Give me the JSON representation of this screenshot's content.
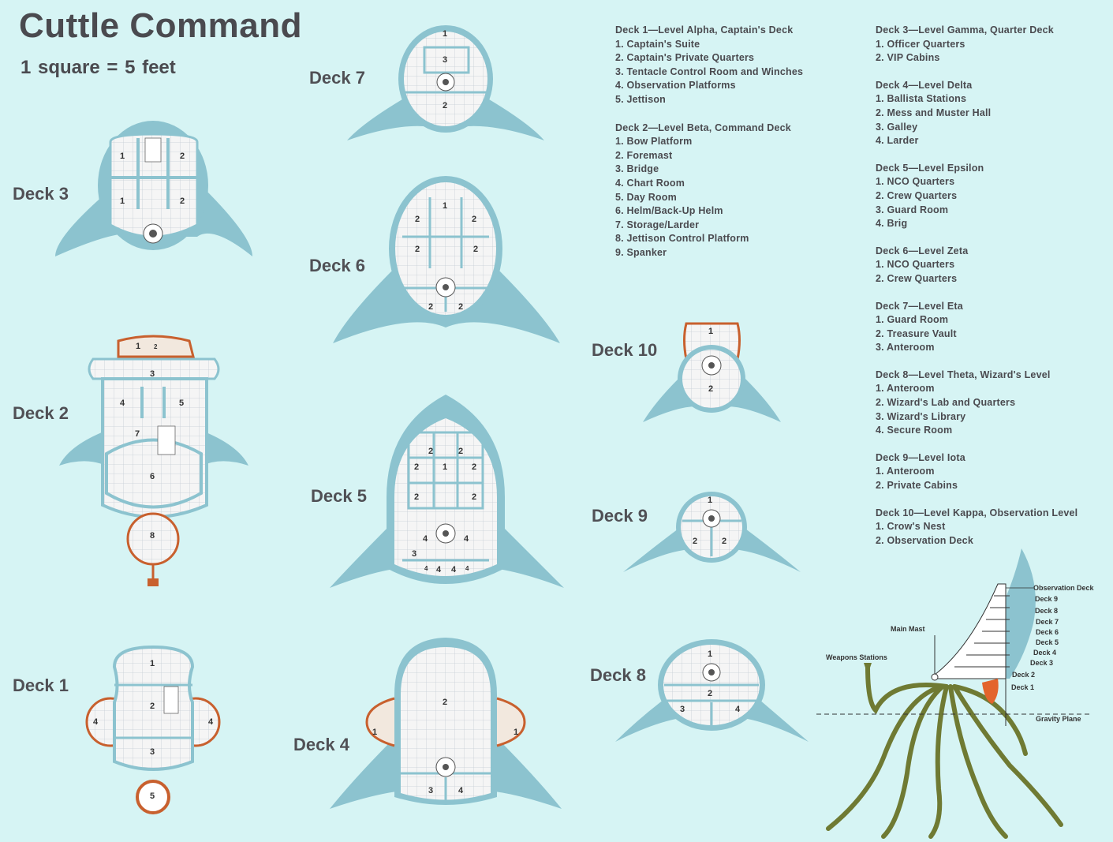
{
  "title": "Cuttle Command",
  "scale": "1 square  =  5 feet",
  "deck_labels": {
    "deck3": "Deck 3",
    "deck2": "Deck 2",
    "deck1": "Deck 1",
    "deck7": "Deck 7",
    "deck6": "Deck 6",
    "deck5": "Deck 5",
    "deck4": "Deck 4",
    "deck10": "Deck 10",
    "deck9": "Deck 9",
    "deck8": "Deck 8"
  },
  "legend_left": [
    {
      "heading": "Deck 1—Level Alpha, Captain's Deck",
      "items": [
        "1. Captain's Suite",
        "2. Captain's Private Quarters",
        "3. Tentacle Control Room and Winches",
        "4. Observation Platforms",
        "5. Jettison"
      ]
    },
    {
      "heading": "Deck 2—Level Beta, Command Deck",
      "items": [
        "1. Bow Platform",
        "2. Foremast",
        "3. Bridge",
        "4. Chart Room",
        "5. Day Room",
        "6. Helm/Back-Up Helm",
        "7. Storage/Larder",
        "8. Jettison Control Platform",
        "9. Spanker"
      ]
    }
  ],
  "legend_right": [
    {
      "heading": "Deck 3—Level Gamma, Quarter Deck",
      "items": [
        "1. Officer Quarters",
        "2. VIP Cabins"
      ]
    },
    {
      "heading": "Deck 4—Level Delta",
      "items": [
        "1. Ballista Stations",
        "2. Mess and Muster Hall",
        "3. Galley",
        "4. Larder"
      ]
    },
    {
      "heading": "Deck 5—Level Epsilon",
      "items": [
        "1. NCO Quarters",
        "2. Crew Quarters",
        "3. Guard Room",
        "4. Brig"
      ]
    },
    {
      "heading": "Deck 6—Level Zeta",
      "items": [
        "1. NCO Quarters",
        "2. Crew Quarters"
      ]
    },
    {
      "heading": "Deck 7—Level Eta",
      "items": [
        "1. Guard Room",
        "2. Treasure Vault",
        "3. Anteroom"
      ]
    },
    {
      "heading": "Deck 8—Level Theta, Wizard's Level",
      "items": [
        "1. Anteroom",
        "2. Wizard's Lab and Quarters",
        "3. Wizard's Library",
        "4. Secure Room"
      ]
    },
    {
      "heading": "Deck 9—Level Iota",
      "items": [
        "1. Anteroom",
        "2. Private Cabins"
      ]
    },
    {
      "heading": "Deck 10—Level Kappa, Observation Level",
      "items": [
        "1. Crow's Nest",
        "2. Observation Deck"
      ]
    }
  ],
  "side_view": {
    "observation_deck": "Observation Deck",
    "decks": [
      "Deck 9",
      "Deck 8",
      "Deck 7",
      "Deck 6",
      "Deck 5",
      "Deck 4",
      "Deck 3",
      "Deck 2",
      "Deck 1"
    ],
    "main_mast": "Main Mast",
    "weapons_stations": "Weapons Stations",
    "gravity_plane": "Gravity Plane"
  },
  "room_numbers": {
    "deck3": [
      "1",
      "2",
      "1",
      "2"
    ],
    "deck2": [
      "1",
      "2",
      "3",
      "4",
      "5",
      "7",
      "6",
      "8"
    ],
    "deck1": [
      "1",
      "2",
      "3",
      "4",
      "4",
      "5"
    ],
    "deck7": [
      "1",
      "3",
      "2"
    ],
    "deck6": [
      "1",
      "2",
      "2",
      "2",
      "2",
      "2",
      "2"
    ],
    "deck5": [
      "2",
      "2",
      "2",
      "1",
      "2",
      "2",
      "2",
      "4",
      "4",
      "3",
      "4",
      "4",
      "4",
      "4"
    ],
    "deck4": [
      "2",
      "1",
      "1",
      "3",
      "4"
    ],
    "deck10": [
      "1",
      "2"
    ],
    "deck9": [
      "1",
      "2",
      "2"
    ],
    "deck8": [
      "1",
      "2",
      "3",
      "4"
    ]
  },
  "colors": {
    "background": "#d6f4f4",
    "hull": "#8cc3cf",
    "floor": "#f4f4f4",
    "grid": "#c8d0d8",
    "orange": "#c8602e",
    "tentacle": "#6f7a33"
  }
}
